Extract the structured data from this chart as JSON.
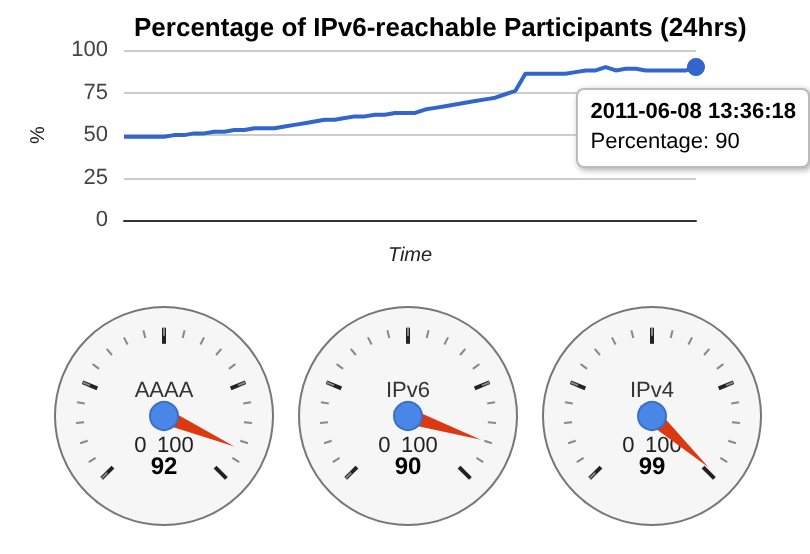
{
  "chart_data": [
    {
      "type": "line",
      "title": "Percentage of IPv6-reachable Participants (24hrs)",
      "xlabel": "Time",
      "ylabel": "%",
      "categories": [
        null,
        null,
        null,
        null,
        null,
        null,
        null,
        null,
        null,
        null,
        null,
        null,
        null,
        null,
        null,
        null,
        null,
        null,
        null,
        null,
        null,
        null,
        null,
        null,
        null,
        null,
        null,
        null,
        null,
        null,
        null,
        null,
        null,
        null,
        null,
        null,
        null,
        null,
        null,
        null,
        null,
        null,
        null,
        null,
        null,
        null,
        null,
        null,
        null,
        null,
        null,
        null,
        null,
        null,
        null,
        null,
        null,
        null
      ],
      "values": [
        49,
        49,
        49,
        49,
        49,
        50,
        50,
        51,
        51,
        52,
        52,
        53,
        53,
        54,
        54,
        54,
        55,
        56,
        57,
        58,
        59,
        59,
        60,
        61,
        61,
        62,
        62,
        63,
        63,
        63,
        65,
        66,
        67,
        68,
        69,
        70,
        71,
        72,
        74,
        76,
        86,
        86,
        86,
        86,
        86,
        87,
        88,
        88,
        90,
        88,
        89,
        89,
        88,
        88,
        88,
        88,
        88,
        90
      ],
      "color": "#3366cc",
      "ylim": [
        0,
        100
      ],
      "yticks": [
        0,
        25,
        50,
        75,
        100
      ],
      "grid": "y",
      "marker": "none",
      "annotations": [
        {
          "text": "2011-06-08 13:36:18",
          "y": 90
        },
        {
          "text": "Percentage: 90",
          "y": 90
        }
      ]
    },
    {
      "type": "other",
      "title": "AAAA",
      "values": [
        92
      ],
      "annotations": [
        "0",
        "100"
      ],
      "data_labels": true
    },
    {
      "type": "other",
      "title": "IPv6",
      "values": [
        90
      ],
      "annotations": [
        "0",
        "100"
      ],
      "data_labels": true
    },
    {
      "type": "other",
      "title": "IPv4",
      "values": [
        99
      ],
      "annotations": [
        "0",
        "100"
      ],
      "data_labels": true
    }
  ]
}
